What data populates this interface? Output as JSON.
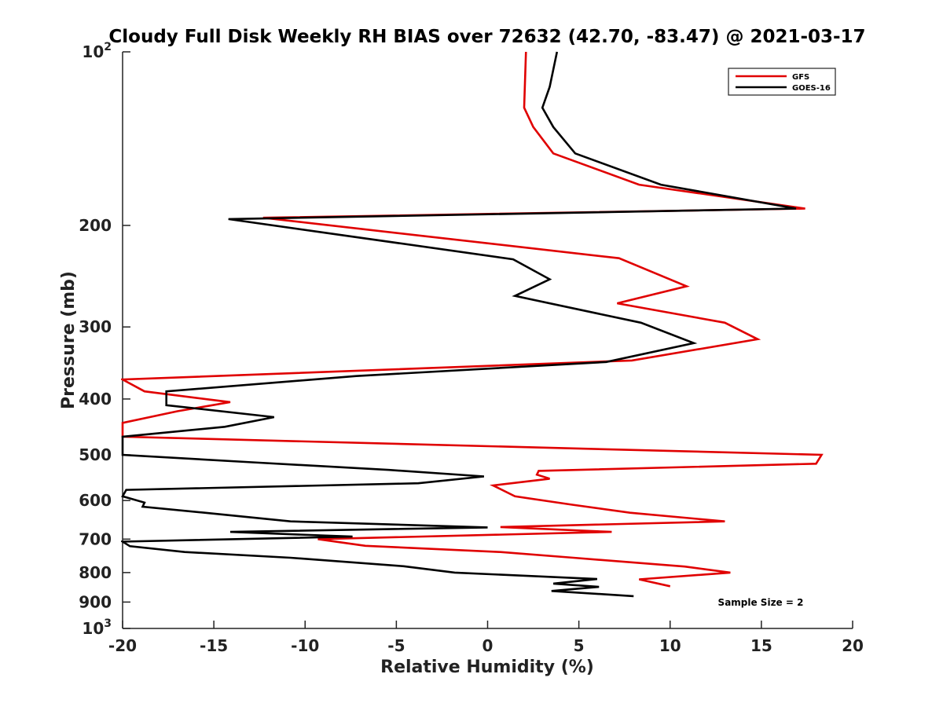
{
  "chart_data": {
    "type": "line",
    "title": "Cloudy Full Disk Weekly RH BIAS over 72632 (42.70, -83.47) @ 2021-03-17",
    "xlabel": "Relative Humidity (%)",
    "ylabel": "Pressure (mb)",
    "xlim": [
      -20,
      20
    ],
    "ylim": [
      100,
      1000
    ],
    "y_scale": "log",
    "y_reversed": true,
    "x_ticks": [
      -20,
      -15,
      -10,
      -5,
      0,
      5,
      10,
      15,
      20
    ],
    "x_tick_labels": [
      "-20",
      "-15",
      "-10",
      "-5",
      "0",
      "5",
      "10",
      "15",
      "20"
    ],
    "y_ticks": [
      100,
      200,
      300,
      400,
      500,
      600,
      700,
      800,
      900,
      1000
    ],
    "y_tick_labels": [
      {
        "base": "10",
        "exp": "2"
      },
      {
        "base": "200",
        "exp": ""
      },
      {
        "base": "300",
        "exp": ""
      },
      {
        "base": "400",
        "exp": ""
      },
      {
        "base": "500",
        "exp": ""
      },
      {
        "base": "600",
        "exp": ""
      },
      {
        "base": "700",
        "exp": ""
      },
      {
        "base": "800",
        "exp": ""
      },
      {
        "base": "900",
        "exp": ""
      },
      {
        "base": "10",
        "exp": "3"
      }
    ],
    "grid": false,
    "legend_position": "top-right",
    "annotation": "Sample Size = 2",
    "series": [
      {
        "name": "GFS",
        "color": "#e00000",
        "points": [
          [
            2.1,
            100
          ],
          [
            2.0,
            125
          ],
          [
            2.5,
            135
          ],
          [
            3.6,
            150
          ],
          [
            8.3,
            170
          ],
          [
            17.4,
            187
          ],
          [
            -12.3,
            194
          ],
          [
            7.2,
            228
          ],
          [
            10.9,
            255
          ],
          [
            7.1,
            273
          ],
          [
            13.0,
            295
          ],
          [
            14.8,
            315
          ],
          [
            7.9,
            343
          ],
          [
            -20.0,
            370
          ],
          [
            -18.8,
            388
          ],
          [
            -14.1,
            405
          ],
          [
            -17.0,
            420
          ],
          [
            -20.0,
            440
          ],
          [
            -20.0,
            465
          ],
          [
            18.3,
            500
          ],
          [
            18.0,
            518
          ],
          [
            2.8,
            533
          ],
          [
            2.7,
            541
          ],
          [
            3.4,
            550
          ],
          [
            0.3,
            565
          ],
          [
            1.5,
            590
          ],
          [
            4.6,
            610
          ],
          [
            7.8,
            630
          ],
          [
            13.0,
            652
          ],
          [
            0.7,
            667
          ],
          [
            6.8,
            680
          ],
          [
            -9.3,
            700
          ],
          [
            -6.7,
            719
          ],
          [
            0.7,
            737
          ],
          [
            4.7,
            754
          ],
          [
            10.8,
            781
          ],
          [
            13.3,
            800
          ],
          [
            8.3,
            822
          ],
          [
            10.0,
            845
          ]
        ]
      },
      {
        "name": "GOES-16",
        "color": "#000000",
        "points": [
          [
            3.8,
            100
          ],
          [
            3.4,
            115
          ],
          [
            3.0,
            125
          ],
          [
            3.6,
            135
          ],
          [
            4.8,
            150
          ],
          [
            9.5,
            170
          ],
          [
            16.9,
            187
          ],
          [
            -14.2,
            195
          ],
          [
            1.4,
            229
          ],
          [
            3.4,
            248
          ],
          [
            1.5,
            265
          ],
          [
            8.4,
            295
          ],
          [
            11.3,
            320
          ],
          [
            6.5,
            345
          ],
          [
            -7.2,
            365
          ],
          [
            -17.6,
            388
          ],
          [
            -17.6,
            410
          ],
          [
            -11.7,
            430
          ],
          [
            -14.4,
            447
          ],
          [
            -20.0,
            465
          ],
          [
            -20.0,
            500
          ],
          [
            -12.9,
            515
          ],
          [
            -5.4,
            531
          ],
          [
            -0.2,
            545
          ],
          [
            -3.8,
            560
          ],
          [
            -19.8,
            575
          ],
          [
            -20.0,
            590
          ],
          [
            -18.8,
            605
          ],
          [
            -18.9,
            615
          ],
          [
            -15.5,
            630
          ],
          [
            -10.8,
            652
          ],
          [
            0.0,
            668
          ],
          [
            -14.1,
            680
          ],
          [
            -7.4,
            693
          ],
          [
            -20.0,
            707
          ],
          [
            -19.6,
            720
          ],
          [
            -16.6,
            737
          ],
          [
            -10.8,
            754
          ],
          [
            -4.6,
            780
          ],
          [
            -1.8,
            800
          ],
          [
            6.0,
            821
          ],
          [
            3.6,
            836
          ],
          [
            6.1,
            847
          ],
          [
            3.5,
            861
          ],
          [
            8.0,
            879
          ]
        ]
      }
    ]
  }
}
